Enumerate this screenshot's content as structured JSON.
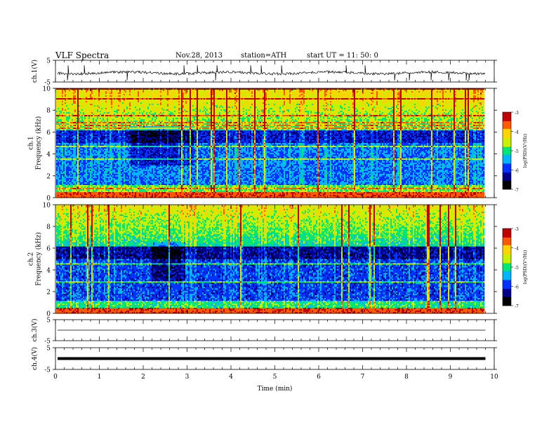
{
  "header": {
    "title": "VLF  Spectra",
    "date": "Nov.28, 2013",
    "station": "station=ATH",
    "start": "start  UT  =   11: 50: 0"
  },
  "chart_data": [
    {
      "type": "line",
      "panel": "ch1-waveform",
      "ylabel": "ch.1(V)",
      "ylim": [
        -5,
        5
      ],
      "ytick_labels": [
        "5",
        "-5"
      ],
      "baseline": -0.8,
      "color": "#000000"
    },
    {
      "type": "heatmap",
      "panel": "ch1-spectrogram",
      "ylabel": "ch.1\nFrequency  (kHz)",
      "ylim": [
        0,
        10
      ],
      "ytick_labels": [
        "0",
        "2",
        "4",
        "6",
        "8",
        "10"
      ],
      "colorbar": {
        "label": "log(PSD)(V²/Hz)",
        "range": [
          -7,
          -3
        ],
        "tick_labels": [
          "-3",
          "-4",
          "-5",
          "-6",
          "-7"
        ],
        "colors": [
          "#000000",
          "#00008b",
          "#0033ff",
          "#00b4ff",
          "#00e676",
          "#c8f000",
          "#ffd400",
          "#ff5a00",
          "#c00000",
          "#ffd8d8"
        ]
      }
    },
    {
      "type": "heatmap",
      "panel": "ch2-spectrogram",
      "ylabel": "ch.2\nFrequency  (kHz)",
      "ylim": [
        0,
        10
      ],
      "ytick_labels": [
        "0",
        "2",
        "4",
        "6",
        "8",
        "10"
      ],
      "colorbar": {
        "label": "log(PSD)(V²/Hz)",
        "range": [
          -7,
          -3
        ],
        "tick_labels": [
          "-3",
          "-4",
          "-5",
          "-6",
          "-7"
        ],
        "colors": [
          "#000000",
          "#00008b",
          "#0033ff",
          "#00b4ff",
          "#00e676",
          "#c8f000",
          "#ffd400",
          "#ff5a00",
          "#c00000",
          "#ffd8d8"
        ]
      }
    },
    {
      "type": "line",
      "panel": "ch3-waveform",
      "ylabel": "ch.3(V)",
      "ylim": [
        -5,
        5
      ],
      "ytick_labels": [
        "5",
        "-5"
      ],
      "baseline": 0,
      "color": "#000000"
    },
    {
      "type": "line",
      "panel": "ch4-waveform",
      "ylabel": "ch.4(V)",
      "ylim": [
        -5,
        5
      ],
      "ytick_labels": [
        "5",
        "-5"
      ],
      "baseline": 0,
      "color": "#000000"
    }
  ],
  "xaxis": {
    "label": "Time  (min)",
    "xlim": [
      0,
      10
    ],
    "tick_labels": [
      "0",
      "1",
      "2",
      "3",
      "4",
      "5",
      "6",
      "7",
      "8",
      "9",
      "10"
    ],
    "data_end": 9.8
  }
}
